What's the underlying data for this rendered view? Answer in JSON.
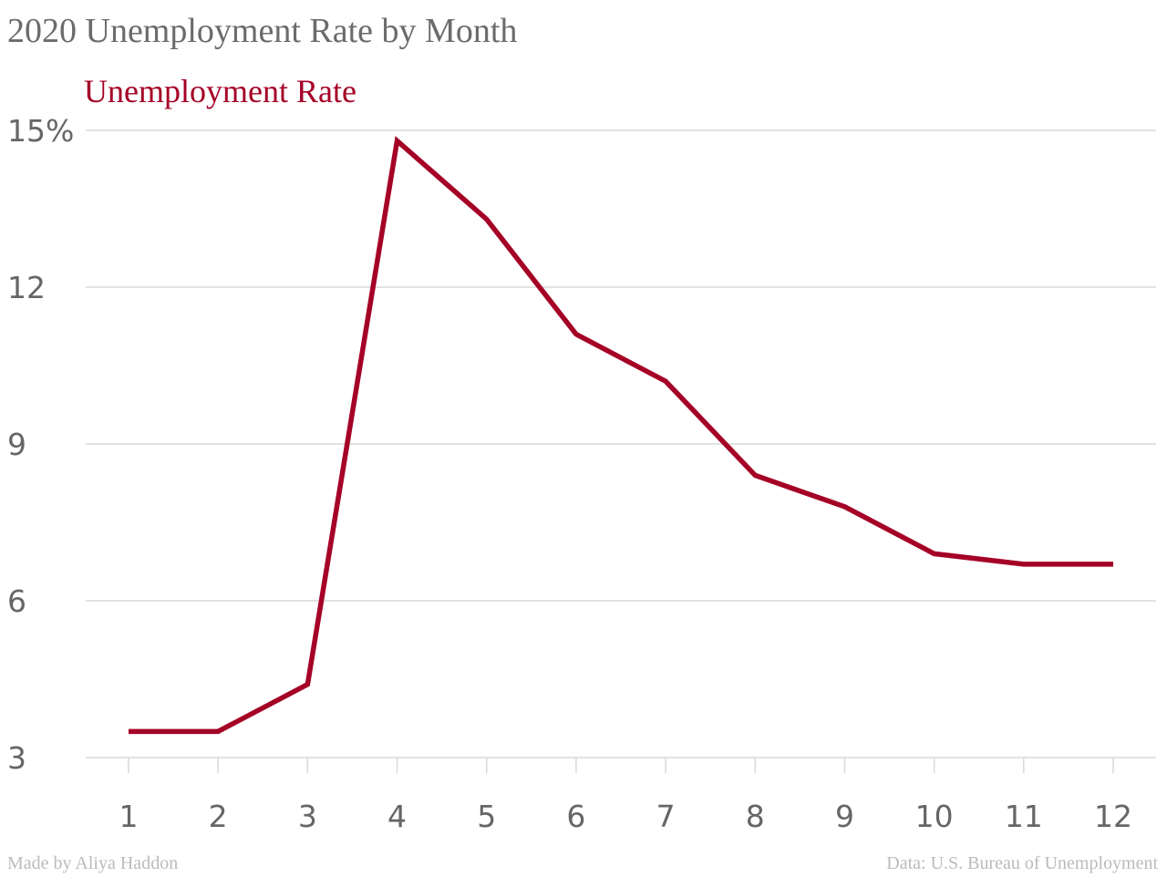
{
  "title": "2020 Unemployment Rate by Month",
  "credit": "Made by Aliya Haddon",
  "source": "Data: U.S. Bureau of Unemployment",
  "colors": {
    "series": "#a50026",
    "grid": "#d9d9d9",
    "axis_text": "#666666"
  },
  "chart_data": {
    "type": "line",
    "title": "2020 Unemployment Rate by Month",
    "xlabel": "",
    "ylabel": "",
    "x": [
      1,
      2,
      3,
      4,
      5,
      6,
      7,
      8,
      9,
      10,
      11,
      12
    ],
    "x_tick_labels": [
      "1",
      "2",
      "3",
      "4",
      "5",
      "6",
      "7",
      "8",
      "9",
      "10",
      "11",
      "12"
    ],
    "y_ticks": [
      3,
      6,
      9,
      12,
      15
    ],
    "y_tick_labels": [
      "3",
      "6",
      "9",
      "12",
      "15%"
    ],
    "ylim": [
      3,
      15
    ],
    "grid": true,
    "legend": "top-left",
    "series": [
      {
        "name": "Unemployment Rate",
        "values": [
          3.5,
          3.5,
          4.4,
          14.8,
          13.3,
          11.1,
          10.2,
          8.4,
          7.8,
          6.9,
          6.7,
          6.7
        ]
      }
    ]
  }
}
